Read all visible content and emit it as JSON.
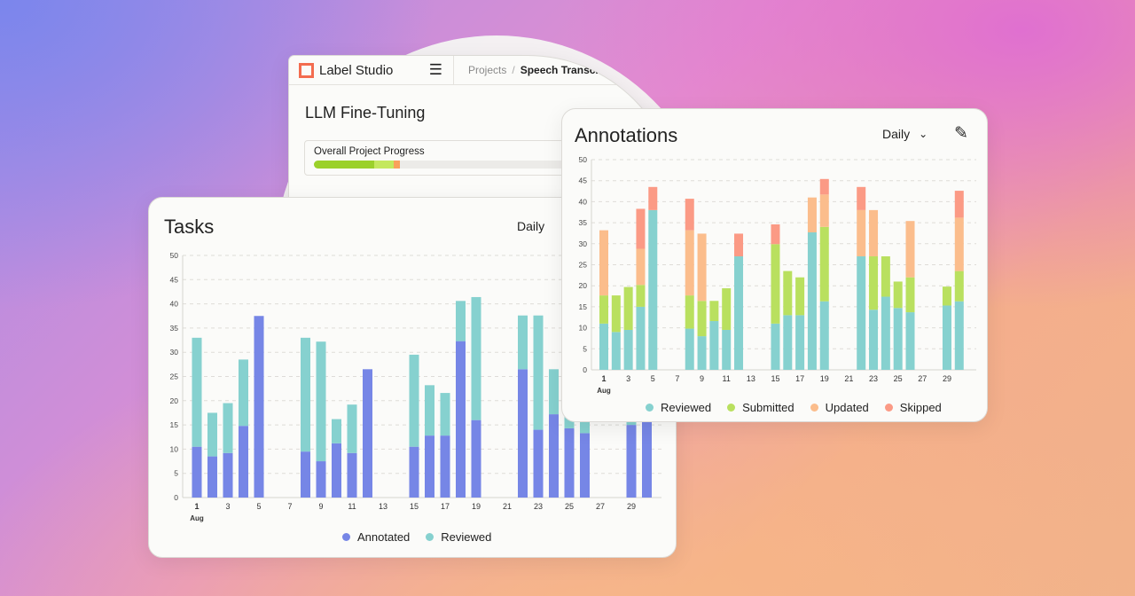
{
  "app": {
    "name": "Label Studio",
    "breadcrumb": [
      "Projects",
      "Speech Transcriptio"
    ],
    "separator": "/"
  },
  "project": {
    "title": "LLM Fine-Tuning",
    "progress_label": "Overall Project Progress",
    "progress": [
      {
        "fraction": 0.17,
        "color": "#9bd12a"
      },
      {
        "fraction": 0.055,
        "color": "#c4e85e"
      },
      {
        "fraction": 0.018,
        "color": "#f9a15b"
      }
    ]
  },
  "tasks": {
    "title": "Tasks",
    "period": "Daily"
  },
  "annotations": {
    "title": "Annotations",
    "period": "Daily"
  },
  "chart_data": [
    {
      "type": "bar",
      "stacked": true,
      "title": "Tasks",
      "ylim": [
        0,
        50
      ],
      "yticks": [
        0,
        5,
        10,
        15,
        20,
        25,
        30,
        35,
        40,
        45,
        50
      ],
      "xticks": [
        "1",
        "3",
        "5",
        "7",
        "9",
        "11",
        "13",
        "15",
        "17",
        "19",
        "21",
        "23",
        "25",
        "27",
        "29"
      ],
      "xsub": "Aug",
      "grid": true,
      "legend": "bottom",
      "days": [
        1,
        2,
        3,
        4,
        5,
        8,
        9,
        10,
        11,
        12,
        15,
        16,
        17,
        18,
        19,
        22,
        23,
        24,
        25,
        26,
        29,
        30
      ],
      "series": [
        {
          "name": "Annotated",
          "color": "#7686e6",
          "values": [
            10.5,
            8.5,
            9.2,
            14.8,
            37.5,
            9.5,
            7.5,
            11.2,
            9.2,
            26.5,
            10.5,
            12.8,
            12.8,
            32.3,
            16,
            26.5,
            14,
            17.2,
            14.3,
            13.3,
            15,
            16
          ]
        },
        {
          "name": "Reviewed",
          "color": "#86d1cf",
          "values": [
            22.5,
            9,
            10.3,
            13.7,
            0,
            23.5,
            24.7,
            5,
            10,
            0,
            19,
            10.4,
            8.8,
            8.3,
            25.4,
            11.1,
            23.6,
            9.3,
            6.7,
            8.7,
            5,
            8
          ]
        }
      ]
    },
    {
      "type": "bar",
      "stacked": true,
      "title": "Annotations",
      "ylim": [
        0,
        50
      ],
      "yticks": [
        0,
        5,
        10,
        15,
        20,
        25,
        30,
        35,
        40,
        45,
        50
      ],
      "xticks": [
        "1",
        "3",
        "5",
        "7",
        "9",
        "11",
        "13",
        "15",
        "17",
        "19",
        "21",
        "23",
        "25",
        "27",
        "29"
      ],
      "xsub": "Aug",
      "grid": true,
      "legend": "bottom",
      "days": [
        1,
        2,
        3,
        4,
        5,
        8,
        9,
        10,
        11,
        12,
        15,
        16,
        17,
        18,
        19,
        22,
        23,
        24,
        25,
        26,
        29,
        30
      ],
      "series": [
        {
          "name": "Reviewed",
          "color": "#86d1cf",
          "values": [
            11,
            9,
            9.5,
            15,
            38,
            9.8,
            8,
            11.6,
            9.5,
            27,
            11,
            13,
            13,
            32.7,
            16.3,
            27,
            14.3,
            17.4,
            14.7,
            13.7,
            15.3,
            16.3
          ]
        },
        {
          "name": "Submitted",
          "color": "#b9e05f",
          "values": [
            6.7,
            8.7,
            10.2,
            5.2,
            0,
            7.9,
            8.4,
            4.8,
            9.9,
            0,
            18.9,
            10.5,
            9,
            0,
            17.7,
            0,
            12.7,
            9.6,
            6.3,
            8.3,
            4.5,
            7.2
          ]
        },
        {
          "name": "Updated",
          "color": "#fbbd8c",
          "values": [
            15.5,
            0,
            0,
            8.6,
            0,
            15.5,
            16,
            0,
            0,
            0,
            0,
            0,
            0,
            8.3,
            7.7,
            11,
            11,
            0,
            0,
            13.4,
            0,
            12.7
          ]
        },
        {
          "name": "Skipped",
          "color": "#fb9a85",
          "values": [
            0,
            0,
            0,
            9.5,
            5.5,
            7.5,
            0,
            0,
            0,
            5.4,
            4.7,
            0,
            0,
            0,
            3.7,
            5.5,
            0,
            0,
            0,
            0,
            0,
            6.4
          ]
        }
      ]
    }
  ]
}
